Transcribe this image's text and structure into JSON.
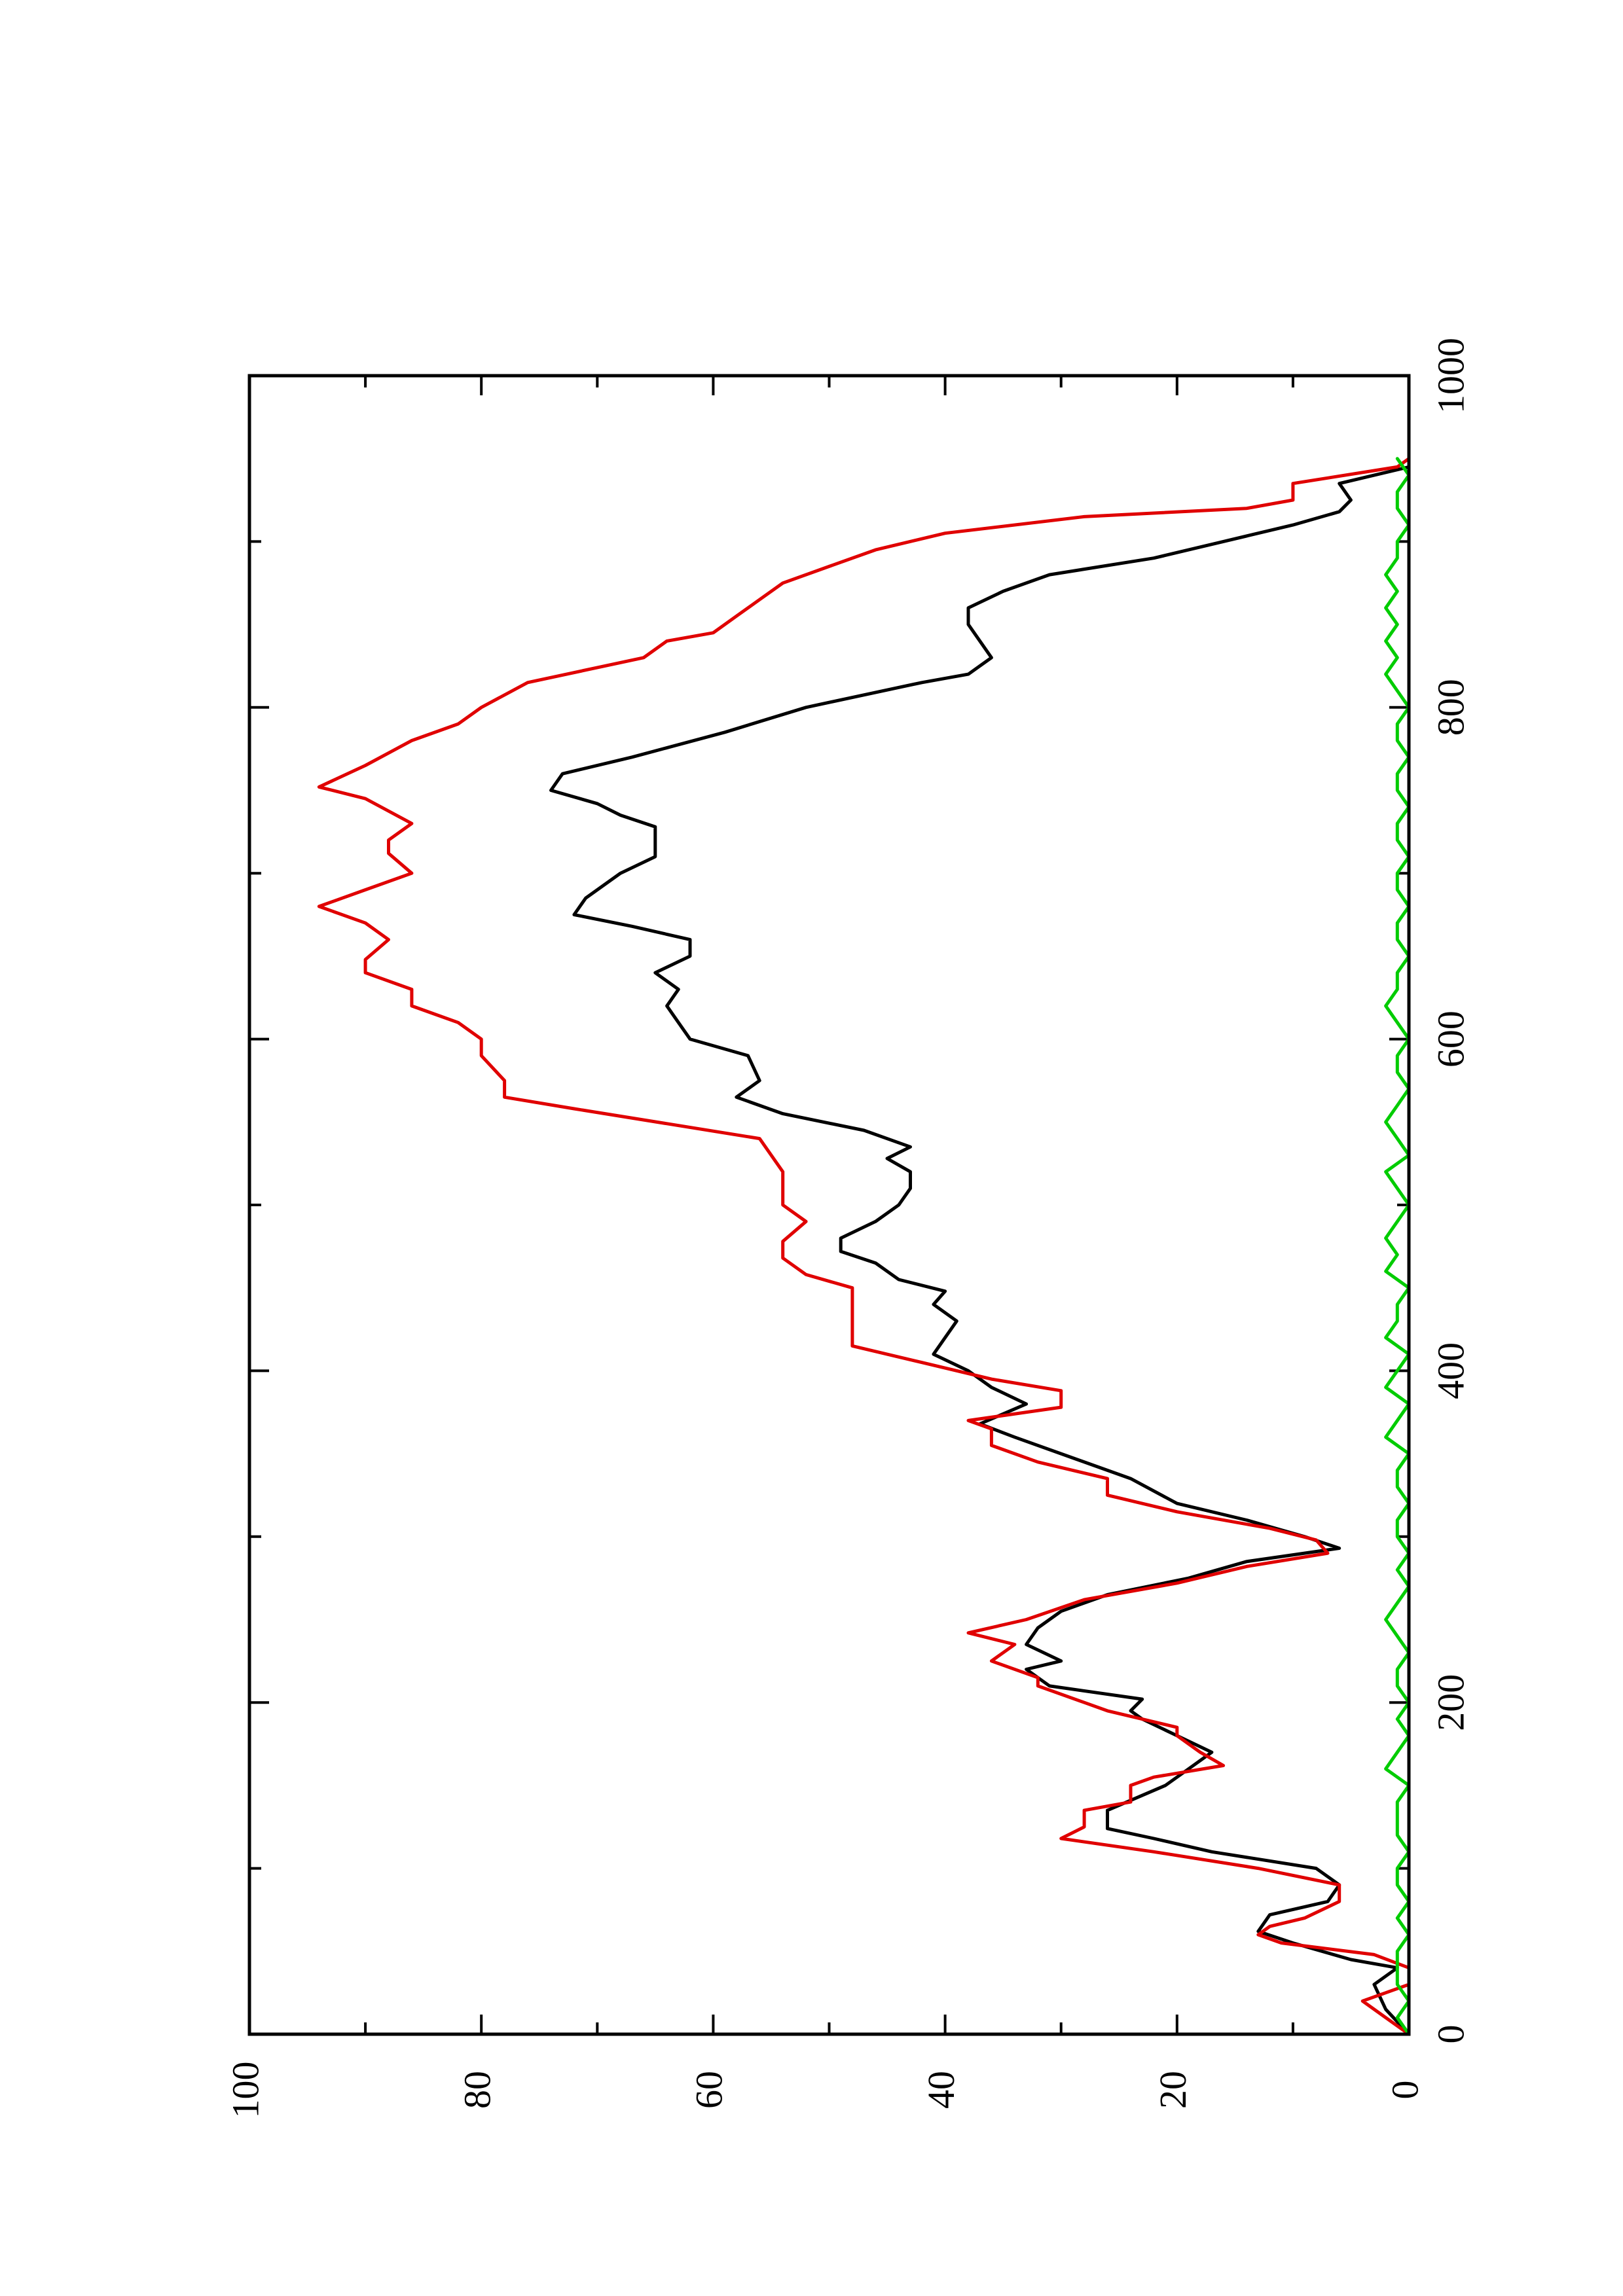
{
  "chart_data": {
    "type": "line",
    "orientation": "rotated-90-ccw",
    "title": "",
    "xlabel": "",
    "ylabel": "",
    "xlim": [
      0,
      1000
    ],
    "ylim": [
      0,
      100
    ],
    "x_ticks": [
      "0",
      "200",
      "400",
      "600",
      "800",
      "1000"
    ],
    "y_ticks": [
      "0",
      "20",
      "40",
      "60",
      "80",
      "100"
    ],
    "grid": false,
    "legend": "none",
    "series": [
      {
        "color": "#000000",
        "points": [
          [
            0,
            0
          ],
          [
            15,
            2
          ],
          [
            30,
            3
          ],
          [
            40,
            1
          ],
          [
            45,
            5
          ],
          [
            55,
            10
          ],
          [
            62,
            13
          ],
          [
            72,
            12
          ],
          [
            80,
            7
          ],
          [
            90,
            6
          ],
          [
            100,
            8
          ],
          [
            110,
            17
          ],
          [
            118,
            22
          ],
          [
            124,
            26
          ],
          [
            135,
            26
          ],
          [
            150,
            21
          ],
          [
            160,
            19
          ],
          [
            170,
            17
          ],
          [
            180,
            20
          ],
          [
            190,
            23
          ],
          [
            195,
            24
          ],
          [
            202,
            23
          ],
          [
            210,
            31
          ],
          [
            220,
            33
          ],
          [
            225,
            30
          ],
          [
            235,
            33
          ],
          [
            245,
            32
          ],
          [
            255,
            30
          ],
          [
            265,
            26
          ],
          [
            275,
            19
          ],
          [
            285,
            14
          ],
          [
            293,
            6
          ],
          [
            300,
            9
          ],
          [
            310,
            14
          ],
          [
            320,
            20
          ],
          [
            335,
            24
          ],
          [
            350,
            30
          ],
          [
            360,
            34
          ],
          [
            368,
            37
          ],
          [
            380,
            33
          ],
          [
            390,
            36
          ],
          [
            400,
            38
          ],
          [
            410,
            41
          ],
          [
            420,
            40
          ],
          [
            430,
            39
          ],
          [
            440,
            41
          ],
          [
            448,
            40
          ],
          [
            455,
            44
          ],
          [
            465,
            46
          ],
          [
            472,
            49
          ],
          [
            480,
            49
          ],
          [
            490,
            46
          ],
          [
            500,
            44
          ],
          [
            510,
            43
          ],
          [
            520,
            43
          ],
          [
            528,
            45
          ],
          [
            535,
            43
          ],
          [
            545,
            47
          ],
          [
            555,
            54
          ],
          [
            565,
            58
          ],
          [
            575,
            56
          ],
          [
            590,
            57
          ],
          [
            600,
            62
          ],
          [
            610,
            63
          ],
          [
            620,
            64
          ],
          [
            630,
            63
          ],
          [
            640,
            65
          ],
          [
            650,
            62
          ],
          [
            660,
            62
          ],
          [
            668,
            67
          ],
          [
            675,
            72
          ],
          [
            685,
            71
          ],
          [
            700,
            68
          ],
          [
            710,
            65
          ],
          [
            720,
            65
          ],
          [
            728,
            65
          ],
          [
            735,
            68
          ],
          [
            742,
            70
          ],
          [
            750,
            74
          ],
          [
            760,
            73
          ],
          [
            770,
            67
          ],
          [
            785,
            59
          ],
          [
            800,
            52
          ],
          [
            815,
            42
          ],
          [
            820,
            38
          ],
          [
            830,
            36
          ],
          [
            840,
            37
          ],
          [
            850,
            38
          ],
          [
            860,
            38
          ],
          [
            870,
            35
          ],
          [
            880,
            31
          ],
          [
            890,
            22
          ],
          [
            900,
            16
          ],
          [
            910,
            10
          ],
          [
            918,
            6
          ],
          [
            925,
            5
          ],
          [
            935,
            6
          ],
          [
            945,
            0
          ]
        ]
      },
      {
        "color": "#e00000",
        "points": [
          [
            0,
            0
          ],
          [
            10,
            2
          ],
          [
            20,
            4
          ],
          [
            25,
            2
          ],
          [
            30,
            0
          ],
          [
            40,
            0
          ],
          [
            48,
            3
          ],
          [
            55,
            11
          ],
          [
            60,
            13
          ],
          [
            65,
            12
          ],
          [
            70,
            9
          ],
          [
            80,
            6
          ],
          [
            90,
            6
          ],
          [
            100,
            13
          ],
          [
            110,
            22
          ],
          [
            118,
            30
          ],
          [
            125,
            28
          ],
          [
            135,
            28
          ],
          [
            140,
            24
          ],
          [
            150,
            24
          ],
          [
            155,
            22
          ],
          [
            162,
            16
          ],
          [
            170,
            18
          ],
          [
            180,
            20
          ],
          [
            185,
            20
          ],
          [
            195,
            26
          ],
          [
            200,
            28
          ],
          [
            210,
            32
          ],
          [
            215,
            32
          ],
          [
            225,
            36
          ],
          [
            235,
            34
          ],
          [
            242,
            38
          ],
          [
            250,
            33
          ],
          [
            262,
            28
          ],
          [
            272,
            20
          ],
          [
            282,
            14
          ],
          [
            290,
            7
          ],
          [
            298,
            8
          ],
          [
            305,
            12
          ],
          [
            315,
            20
          ],
          [
            325,
            26
          ],
          [
            335,
            26
          ],
          [
            345,
            32
          ],
          [
            355,
            36
          ],
          [
            365,
            36
          ],
          [
            370,
            38
          ],
          [
            378,
            30
          ],
          [
            388,
            30
          ],
          [
            395,
            36
          ],
          [
            405,
            42
          ],
          [
            415,
            48
          ],
          [
            425,
            48
          ],
          [
            440,
            48
          ],
          [
            450,
            48
          ],
          [
            458,
            52
          ],
          [
            468,
            54
          ],
          [
            478,
            54
          ],
          [
            490,
            52
          ],
          [
            500,
            54
          ],
          [
            505,
            54
          ],
          [
            520,
            54
          ],
          [
            540,
            56
          ],
          [
            558,
            72
          ],
          [
            565,
            78
          ],
          [
            575,
            78
          ],
          [
            590,
            80
          ],
          [
            600,
            80
          ],
          [
            610,
            82
          ],
          [
            615,
            84
          ],
          [
            620,
            86
          ],
          [
            630,
            86
          ],
          [
            640,
            90
          ],
          [
            648,
            90
          ],
          [
            660,
            88
          ],
          [
            670,
            90
          ],
          [
            680,
            94
          ],
          [
            690,
            90
          ],
          [
            700,
            86
          ],
          [
            712,
            88
          ],
          [
            720,
            88
          ],
          [
            730,
            86
          ],
          [
            745,
            90
          ],
          [
            752,
            94
          ],
          [
            765,
            90
          ],
          [
            780,
            86
          ],
          [
            790,
            82
          ],
          [
            800,
            80
          ],
          [
            815,
            76
          ],
          [
            830,
            66
          ],
          [
            840,
            64
          ],
          [
            845,
            60
          ],
          [
            855,
            58
          ],
          [
            865,
            56
          ],
          [
            875,
            54
          ],
          [
            885,
            50
          ],
          [
            895,
            46
          ],
          [
            905,
            40
          ],
          [
            915,
            28
          ],
          [
            920,
            14
          ],
          [
            925,
            10
          ],
          [
            935,
            10
          ],
          [
            945,
            1
          ],
          [
            950,
            0
          ]
        ]
      },
      {
        "color": "#00cc00",
        "points": [
          [
            0,
            0
          ],
          [
            10,
            1
          ],
          [
            20,
            0
          ],
          [
            30,
            1
          ],
          [
            40,
            1
          ],
          [
            50,
            1
          ],
          [
            60,
            0
          ],
          [
            70,
            1
          ],
          [
            80,
            0
          ],
          [
            90,
            1
          ],
          [
            100,
            1
          ],
          [
            110,
            0
          ],
          [
            120,
            1
          ],
          [
            130,
            1
          ],
          [
            140,
            1
          ],
          [
            150,
            0
          ],
          [
            160,
            2
          ],
          [
            170,
            1
          ],
          [
            180,
            0
          ],
          [
            190,
            1
          ],
          [
            200,
            0
          ],
          [
            210,
            1
          ],
          [
            220,
            1
          ],
          [
            230,
            0
          ],
          [
            240,
            1
          ],
          [
            250,
            2
          ],
          [
            260,
            1
          ],
          [
            270,
            0
          ],
          [
            280,
            1
          ],
          [
            290,
            0
          ],
          [
            300,
            1
          ],
          [
            310,
            1
          ],
          [
            320,
            0
          ],
          [
            330,
            1
          ],
          [
            340,
            1
          ],
          [
            350,
            0
          ],
          [
            360,
            2
          ],
          [
            370,
            1
          ],
          [
            380,
            0
          ],
          [
            390,
            2
          ],
          [
            400,
            1
          ],
          [
            410,
            0
          ],
          [
            420,
            2
          ],
          [
            430,
            1
          ],
          [
            440,
            1
          ],
          [
            450,
            0
          ],
          [
            460,
            2
          ],
          [
            470,
            1
          ],
          [
            480,
            2
          ],
          [
            490,
            1
          ],
          [
            500,
            0
          ],
          [
            510,
            1
          ],
          [
            520,
            2
          ],
          [
            530,
            0
          ],
          [
            540,
            1
          ],
          [
            550,
            2
          ],
          [
            560,
            1
          ],
          [
            570,
            0
          ],
          [
            580,
            1
          ],
          [
            590,
            1
          ],
          [
            600,
            0
          ],
          [
            610,
            1
          ],
          [
            620,
            2
          ],
          [
            630,
            1
          ],
          [
            640,
            1
          ],
          [
            650,
            0
          ],
          [
            660,
            1
          ],
          [
            670,
            1
          ],
          [
            680,
            0
          ],
          [
            690,
            1
          ],
          [
            700,
            1
          ],
          [
            710,
            0
          ],
          [
            720,
            1
          ],
          [
            730,
            1
          ],
          [
            740,
            0
          ],
          [
            750,
            1
          ],
          [
            760,
            1
          ],
          [
            770,
            0
          ],
          [
            780,
            1
          ],
          [
            790,
            1
          ],
          [
            800,
            0
          ],
          [
            810,
            1
          ],
          [
            820,
            2
          ],
          [
            830,
            1
          ],
          [
            840,
            2
          ],
          [
            850,
            1
          ],
          [
            860,
            2
          ],
          [
            870,
            1
          ],
          [
            880,
            2
          ],
          [
            890,
            1
          ],
          [
            900,
            1
          ],
          [
            910,
            0
          ],
          [
            920,
            1
          ],
          [
            930,
            1
          ],
          [
            940,
            0
          ],
          [
            950,
            1
          ]
        ]
      }
    ]
  }
}
